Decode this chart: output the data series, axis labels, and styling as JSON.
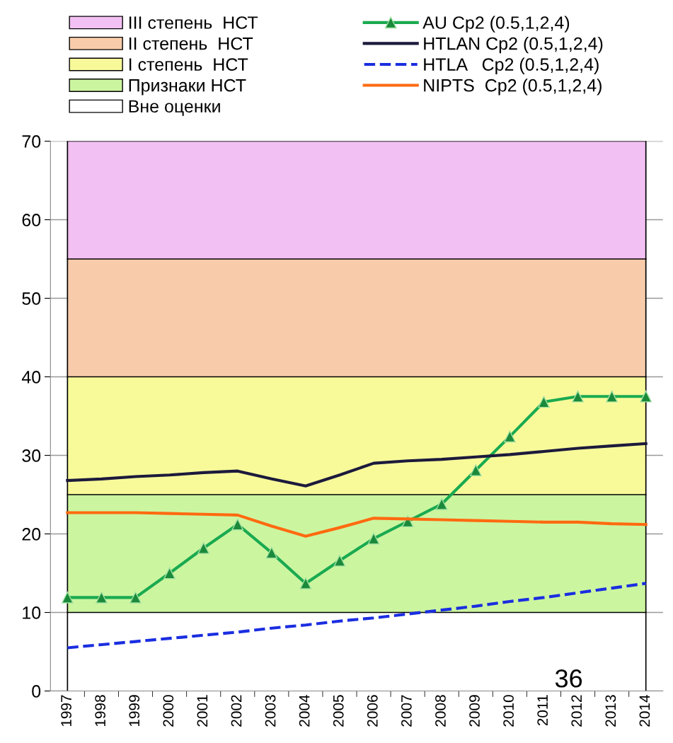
{
  "chart_data": {
    "type": "line",
    "categories": [
      "1997",
      "1998",
      "1999",
      "2000",
      "2001",
      "2002",
      "2003",
      "2004",
      "2005",
      "2006",
      "2007",
      "2008",
      "2009",
      "2010",
      "2011",
      "2012",
      "2013",
      "2014"
    ],
    "ylim": [
      0,
      70
    ],
    "yticks": [
      0,
      10,
      20,
      30,
      40,
      50,
      60,
      70
    ],
    "grid": "y",
    "legend": "top",
    "stacked": true,
    "series": [
      {
        "name": "Вне оценки",
        "type": "area",
        "color": "#ffffff",
        "values": [
          10,
          10,
          10,
          10,
          10,
          10,
          10,
          10,
          10,
          10,
          10,
          10,
          10,
          10,
          10,
          10,
          10,
          10
        ]
      },
      {
        "name": "Признаки НСТ",
        "type": "area",
        "color": "#ccf5a0",
        "values": [
          15,
          15,
          15,
          15,
          15,
          15,
          15,
          15,
          15,
          15,
          15,
          15,
          15,
          15,
          15,
          15,
          15,
          15
        ]
      },
      {
        "name": "I степень  НСТ",
        "type": "area",
        "color": "#f8fa9a",
        "values": [
          15,
          15,
          15,
          15,
          15,
          15,
          15,
          15,
          15,
          15,
          15,
          15,
          15,
          15,
          15,
          15,
          15,
          15
        ]
      },
      {
        "name": "II степень  НСТ",
        "type": "area",
        "color": "#f8ccaa",
        "values": [
          15,
          15,
          15,
          15,
          15,
          15,
          15,
          15,
          15,
          15,
          15,
          15,
          15,
          15,
          15,
          15,
          15,
          15
        ]
      },
      {
        "name": "III степень  НСТ",
        "type": "area",
        "color": "#f3c0f3",
        "values": [
          15,
          15,
          15,
          15,
          15,
          15,
          15,
          15,
          15,
          15,
          15,
          15,
          15,
          15,
          15,
          15,
          15,
          15
        ]
      },
      {
        "name": "AU Cp2 (0.5,1,2,4)",
        "color": "#1aaa50",
        "marker": "triangle",
        "line_style": "solid",
        "values": [
          11.9,
          11.9,
          11.9,
          15.0,
          18.2,
          21.2,
          17.6,
          13.7,
          16.6,
          19.4,
          21.6,
          23.8,
          28.1,
          32.4,
          36.8,
          37.5,
          37.5,
          37.5
        ]
      },
      {
        "name": "HTLAN Cp2 (0.5,1,2,4)",
        "color": "#1c1a3c",
        "line_style": "solid",
        "values": [
          26.8,
          27.0,
          27.3,
          27.5,
          27.8,
          28.0,
          27.0,
          26.1,
          27.5,
          29.0,
          29.3,
          29.5,
          29.8,
          30.1,
          30.5,
          30.9,
          31.2,
          31.5
        ]
      },
      {
        "name": "HTLA   Cp2 (0.5,1,2,4)",
        "color": "#1a2ee0",
        "line_style": "dashed",
        "values": [
          5.5,
          5.9,
          6.3,
          6.7,
          7.1,
          7.5,
          8.0,
          8.4,
          8.9,
          9.3,
          9.8,
          10.3,
          10.8,
          11.4,
          11.9,
          12.5,
          13.1,
          13.7
        ]
      },
      {
        "name": "NIPTS  Cp2 (0.5,1,2,4)",
        "color": "#ff6a10",
        "line_style": "solid",
        "values": [
          22.7,
          22.7,
          22.7,
          22.6,
          22.5,
          22.4,
          21.0,
          19.7,
          20.8,
          22.0,
          21.9,
          21.8,
          21.7,
          21.6,
          21.5,
          21.5,
          21.3,
          21.2
        ]
      }
    ],
    "annotations": [
      "36"
    ]
  }
}
